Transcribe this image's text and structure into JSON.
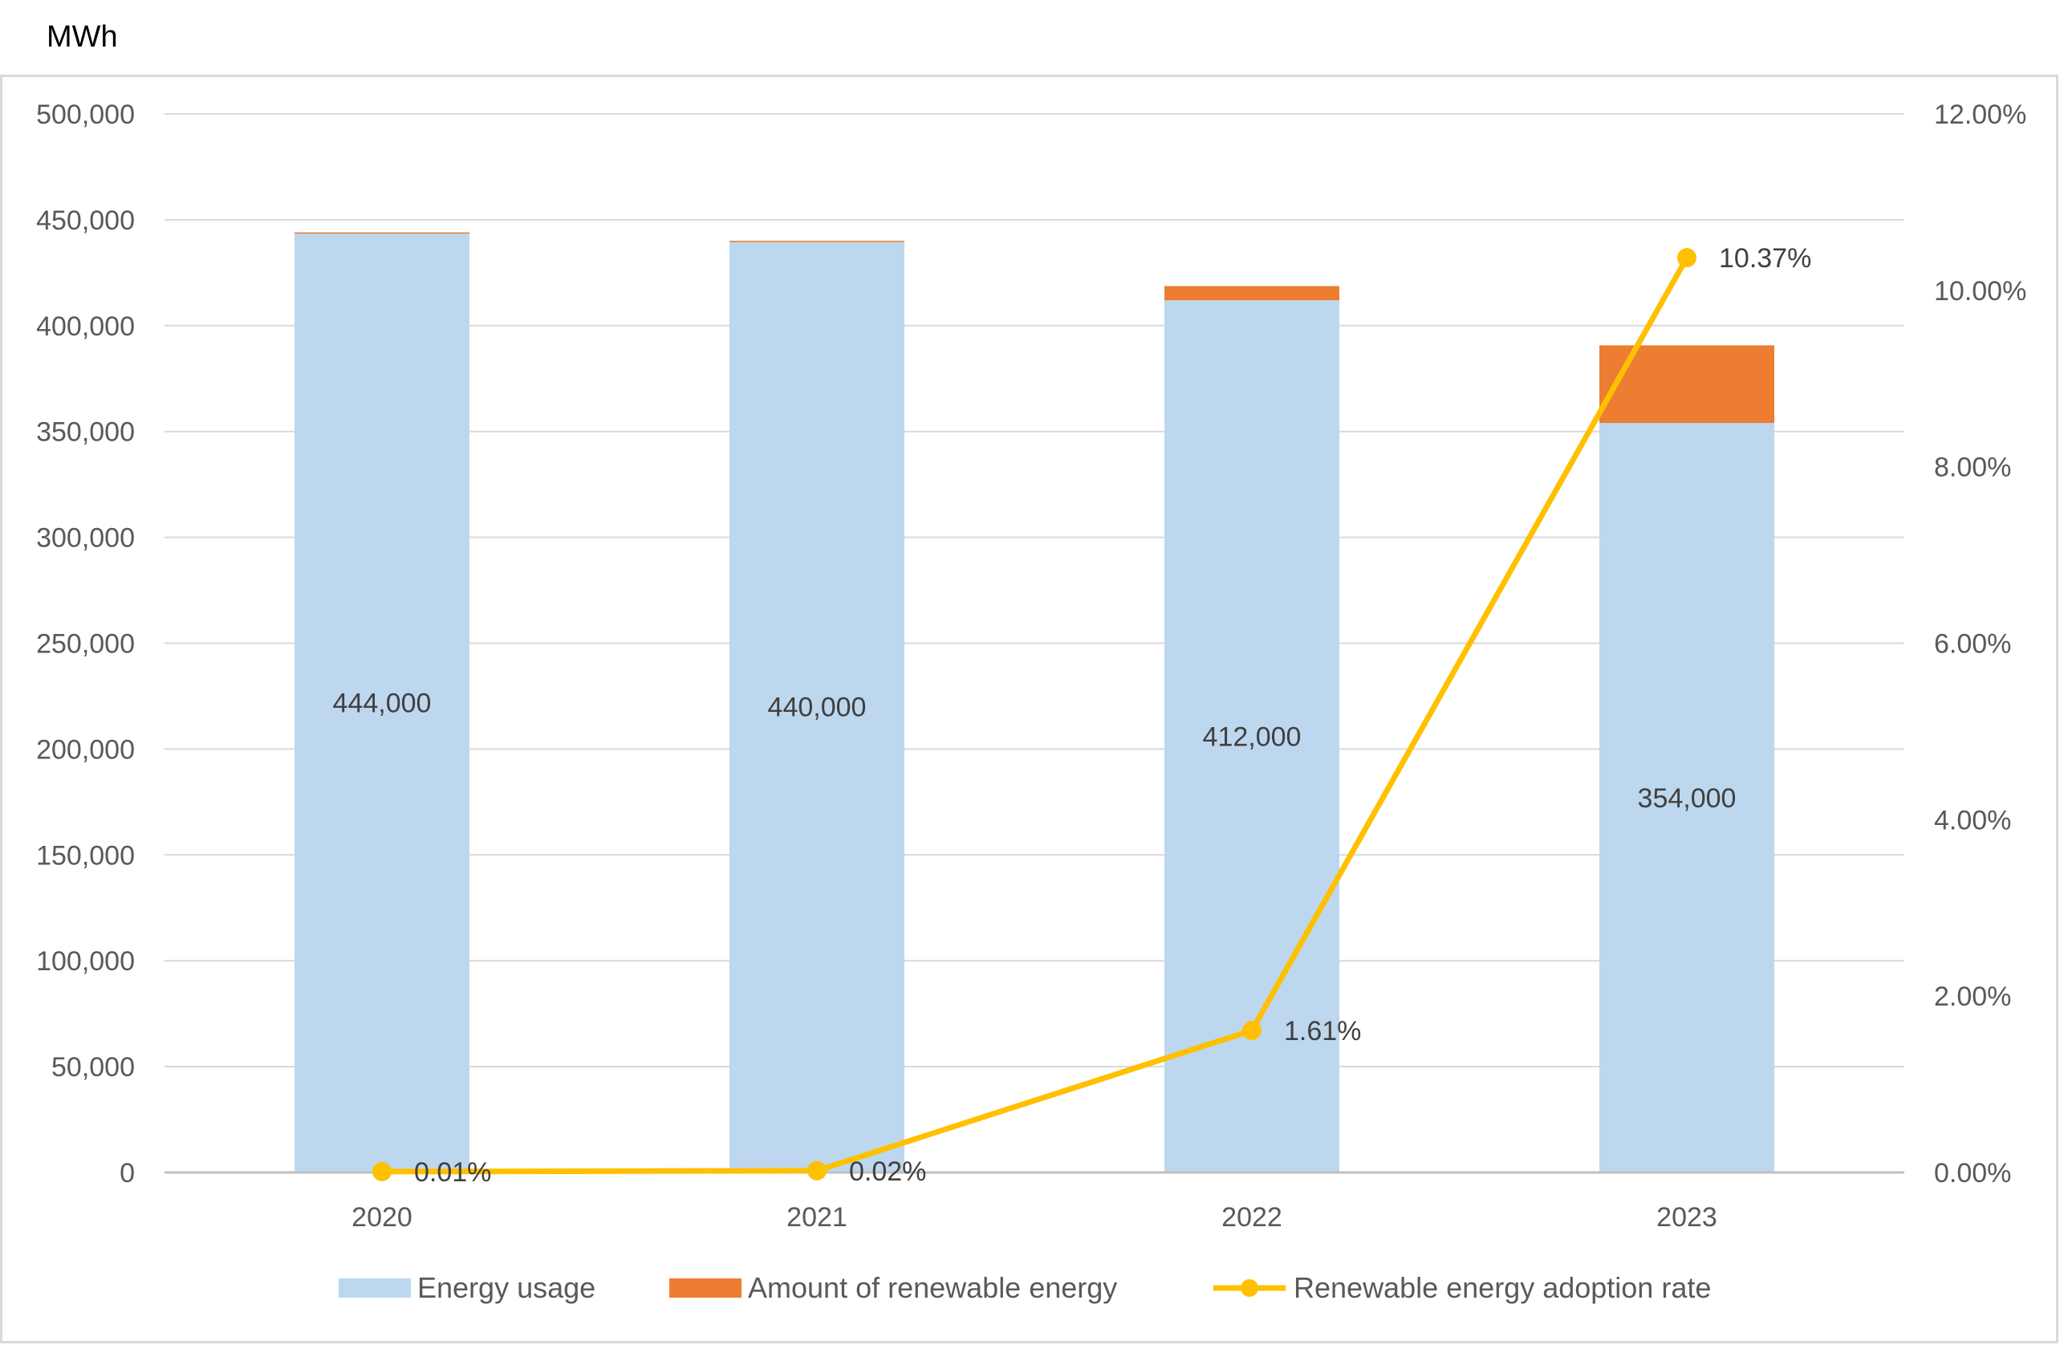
{
  "chart_data": {
    "type": "bar",
    "stacked": true,
    "unit_label": "MWh",
    "title": "",
    "xlabel": "",
    "ylabel": "",
    "categories": [
      "2020",
      "2021",
      "2022",
      "2023"
    ],
    "ylim": [
      0,
      500000
    ],
    "y_ticks": [
      0,
      50000,
      100000,
      150000,
      200000,
      250000,
      300000,
      350000,
      400000,
      450000,
      500000
    ],
    "y_tick_labels": [
      "0",
      "50,000",
      "100,000",
      "150,000",
      "200,000",
      "250,000",
      "300,000",
      "350,000",
      "400,000",
      "450,000",
      "500,000"
    ],
    "y2lim": [
      0,
      12
    ],
    "y2_ticks": [
      0,
      2,
      4,
      6,
      8,
      10,
      12
    ],
    "y2_tick_labels": [
      "0.00%",
      "2.00%",
      "4.00%",
      "6.00%",
      "8.00%",
      "10.00%",
      "12.00%"
    ],
    "grid": true,
    "legend_position": "bottom",
    "series": [
      {
        "name": "Energy usage",
        "kind": "bar",
        "color": "#bdd7ee",
        "values": [
          444000,
          440000,
          412000,
          354000
        ],
        "labels": [
          "444,000",
          "440,000",
          "412,000",
          "354,000"
        ]
      },
      {
        "name": "Amount of renewable energy",
        "kind": "bar",
        "color": "#ed7d31",
        "values": [
          44,
          88,
          6700,
          36700
        ]
      },
      {
        "name": "Renewable energy adoption rate",
        "kind": "line",
        "axis": "secondary",
        "color": "#ffc000",
        "values": [
          0.01,
          0.02,
          1.61,
          10.37
        ],
        "labels": [
          "0.01%",
          "0.02%",
          "1.61%",
          "10.37%"
        ]
      }
    ]
  }
}
